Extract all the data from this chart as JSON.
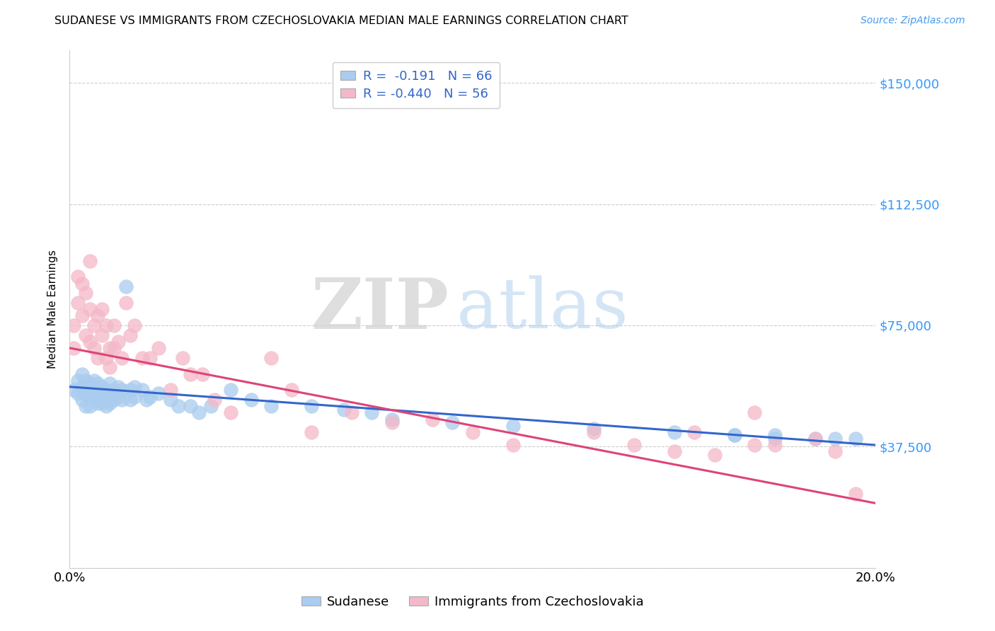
{
  "title": "SUDANESE VS IMMIGRANTS FROM CZECHOSLOVAKIA MEDIAN MALE EARNINGS CORRELATION CHART",
  "source": "Source: ZipAtlas.com",
  "ylabel": "Median Male Earnings",
  "xlim": [
    0.0,
    0.2
  ],
  "ylim": [
    0,
    160000
  ],
  "yticks": [
    0,
    37500,
    75000,
    112500,
    150000
  ],
  "ytick_labels": [
    "",
    "$37,500",
    "$75,000",
    "$112,500",
    "$150,000"
  ],
  "xtick_labels": [
    "0.0%",
    "20.0%"
  ],
  "xtick_positions": [
    0.0,
    0.2
  ],
  "blue_color": "#aaccee",
  "pink_color": "#f4b8c8",
  "blue_line_color": "#3366cc",
  "pink_line_color": "#dd4477",
  "R_blue": -0.191,
  "N_blue": 66,
  "R_pink": -0.44,
  "N_pink": 56,
  "legend_label_blue": "Sudanese",
  "legend_label_pink": "Immigrants from Czechoslovakia",
  "watermark_zip": "ZIP",
  "watermark_atlas": "atlas",
  "blue_line_x0": 0.0,
  "blue_line_y0": 56000,
  "blue_line_x1": 0.2,
  "blue_line_y1": 38000,
  "pink_line_x0": 0.0,
  "pink_line_y0": 68000,
  "pink_line_x1": 0.2,
  "pink_line_y1": 20000,
  "blue_scatter_x": [
    0.001,
    0.002,
    0.002,
    0.003,
    0.003,
    0.003,
    0.004,
    0.004,
    0.004,
    0.005,
    0.005,
    0.005,
    0.005,
    0.006,
    0.006,
    0.006,
    0.007,
    0.007,
    0.007,
    0.008,
    0.008,
    0.008,
    0.009,
    0.009,
    0.009,
    0.01,
    0.01,
    0.01,
    0.011,
    0.011,
    0.012,
    0.012,
    0.013,
    0.013,
    0.014,
    0.015,
    0.015,
    0.016,
    0.016,
    0.018,
    0.019,
    0.02,
    0.022,
    0.025,
    0.027,
    0.03,
    0.032,
    0.035,
    0.04,
    0.045,
    0.05,
    0.06,
    0.068,
    0.075,
    0.08,
    0.095,
    0.11,
    0.13,
    0.15,
    0.165,
    0.175,
    0.185,
    0.19,
    0.195,
    0.165,
    0.175
  ],
  "blue_scatter_y": [
    55000,
    58000,
    54000,
    60000,
    56000,
    52000,
    58000,
    54000,
    50000,
    57000,
    55000,
    53000,
    50000,
    58000,
    55000,
    52000,
    57000,
    54000,
    51000,
    56000,
    54000,
    51000,
    55000,
    53000,
    50000,
    57000,
    54000,
    51000,
    55000,
    52000,
    56000,
    53000,
    55000,
    52000,
    87000,
    55000,
    52000,
    56000,
    53000,
    55000,
    52000,
    53000,
    54000,
    52000,
    50000,
    50000,
    48000,
    50000,
    55000,
    52000,
    50000,
    50000,
    49000,
    48000,
    46000,
    45000,
    44000,
    43000,
    42000,
    41000,
    40000,
    40000,
    40000,
    40000,
    41000,
    41000
  ],
  "pink_scatter_x": [
    0.001,
    0.001,
    0.002,
    0.002,
    0.003,
    0.003,
    0.004,
    0.004,
    0.005,
    0.005,
    0.005,
    0.006,
    0.006,
    0.007,
    0.007,
    0.008,
    0.008,
    0.009,
    0.009,
    0.01,
    0.01,
    0.011,
    0.011,
    0.012,
    0.013,
    0.014,
    0.015,
    0.016,
    0.018,
    0.02,
    0.022,
    0.025,
    0.028,
    0.03,
    0.033,
    0.036,
    0.04,
    0.05,
    0.055,
    0.06,
    0.07,
    0.08,
    0.09,
    0.1,
    0.11,
    0.13,
    0.14,
    0.15,
    0.155,
    0.16,
    0.17,
    0.185,
    0.17,
    0.175,
    0.19,
    0.195
  ],
  "pink_scatter_y": [
    68000,
    75000,
    90000,
    82000,
    88000,
    78000,
    85000,
    72000,
    80000,
    95000,
    70000,
    75000,
    68000,
    78000,
    65000,
    80000,
    72000,
    75000,
    65000,
    68000,
    62000,
    75000,
    68000,
    70000,
    65000,
    82000,
    72000,
    75000,
    65000,
    65000,
    68000,
    55000,
    65000,
    60000,
    60000,
    52000,
    48000,
    65000,
    55000,
    42000,
    48000,
    45000,
    46000,
    42000,
    38000,
    42000,
    38000,
    36000,
    42000,
    35000,
    38000,
    40000,
    48000,
    38000,
    36000,
    23000
  ]
}
